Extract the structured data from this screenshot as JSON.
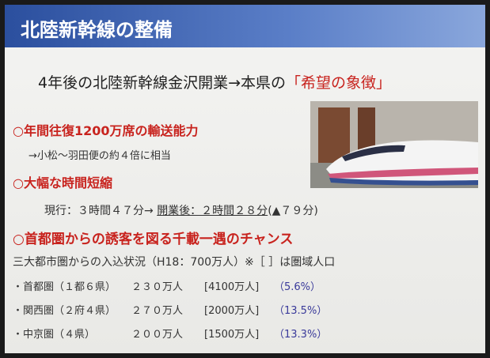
{
  "header": {
    "title": "北陸新幹線の整備"
  },
  "subtitle": {
    "text": "4年後の北陸新幹線金沢開業→本県の",
    "highlight": "「希望の象徴」"
  },
  "sections": [
    {
      "heading": "○年間往復1200万席の輸送能力",
      "detail": "→小松～羽田便の約４倍に相当"
    },
    {
      "heading": "○大幅な時間短縮",
      "detail_before": "現行：３時間４７分→",
      "detail_underlined": "開業後：２時間２８分",
      "detail_after": "(▲７９分)"
    },
    {
      "heading": "○首都圏からの誘客を図る千載一遇のチャンス"
    }
  ],
  "note": "三大都市圏からの入込状況（H18：700万人）※［ ］は圏域人口",
  "rows": [
    [
      "・首都圏（１都６県）",
      "２３０万人",
      "[4100万人]",
      "（5.6%）"
    ],
    [
      "・関西圏（２府４県）",
      "２７０万人",
      "[2000万人]",
      "（13.5%）"
    ],
    [
      "・中京圏（４県）",
      "２００万人",
      "[1500万人]",
      "（13.3%）"
    ]
  ]
}
